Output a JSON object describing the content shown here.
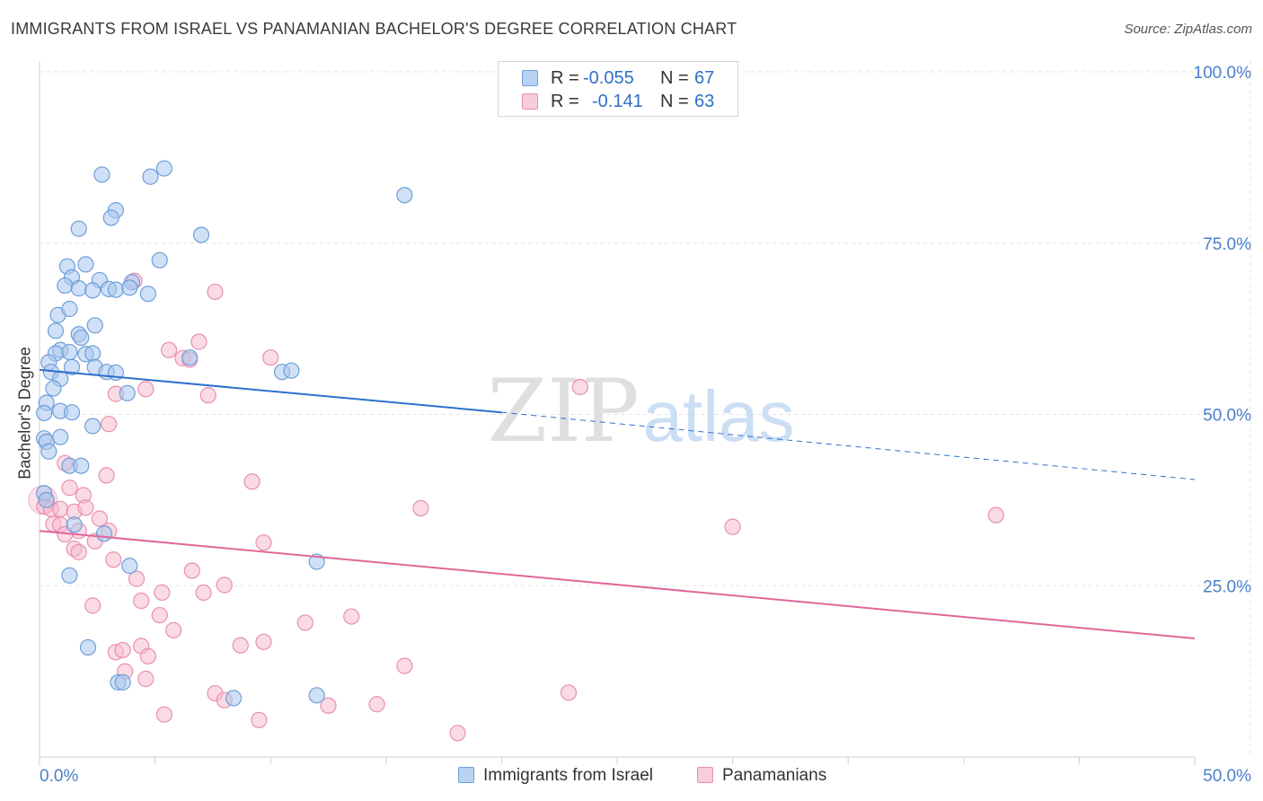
{
  "title": "IMMIGRANTS FROM ISRAEL VS PANAMANIAN BACHELOR'S DEGREE CORRELATION CHART",
  "source": "Source: ZipAtlas.com",
  "watermark": {
    "zip": "ZIP",
    "atlas": "atlas"
  },
  "legend_top": {
    "rows": [
      {
        "r_label": "R =",
        "r_value": "-0.055",
        "n_label": "N =",
        "n_value": "67"
      },
      {
        "r_label": "R =",
        "r_value": "-0.141",
        "n_label": "N =",
        "n_value": "63"
      }
    ]
  },
  "legend_bottom": {
    "series1": "Immigrants from Israel",
    "series2": "Panamanians"
  },
  "colors": {
    "blue_fill": "#a9c7ef",
    "blue_stroke": "#6f9fd8",
    "blue_line": "#2f6fce",
    "pink_fill": "#f6bdd0",
    "pink_stroke": "#e98fb0",
    "pink_line": "#e0679a",
    "axis_text": "#4a7fcb",
    "grid": "#e3e3e3"
  },
  "chart_data": {
    "type": "scatter",
    "title": "IMMIGRANTS FROM ISRAEL VS PANAMANIAN BACHELOR'S DEGREE CORRELATION CHART",
    "xlabel": "",
    "ylabel": "Bachelor's Degree",
    "xlim": [
      0,
      50
    ],
    "ylim": [
      0,
      100
    ],
    "x_tick_labels": [
      "0.0%",
      "50.0%"
    ],
    "y_tick_labels": [
      "100.0%",
      "75.0%",
      "50.0%",
      "25.0%"
    ],
    "y_ticks": [
      100,
      75,
      50,
      25
    ],
    "series": [
      {
        "name": "Immigrants from Israel",
        "R": -0.055,
        "N": 67,
        "trend": {
          "x0": 0,
          "y0": 56.5,
          "x1": 20,
          "y1": 50.3,
          "dash_x1": 50,
          "dash_y1": 40.5
        },
        "points": [
          [
            2.7,
            85.0
          ],
          [
            4.8,
            84.7
          ],
          [
            5.4,
            85.9
          ],
          [
            3.3,
            79.8
          ],
          [
            3.1,
            78.7
          ],
          [
            1.7,
            77.1
          ],
          [
            7.0,
            76.2
          ],
          [
            15.8,
            82.0
          ],
          [
            5.2,
            72.5
          ],
          [
            1.2,
            71.6
          ],
          [
            2.0,
            71.9
          ],
          [
            1.4,
            70.0
          ],
          [
            2.6,
            69.6
          ],
          [
            1.1,
            68.8
          ],
          [
            1.7,
            68.4
          ],
          [
            2.3,
            68.1
          ],
          [
            3.0,
            68.3
          ],
          [
            3.3,
            68.2
          ],
          [
            4.0,
            69.3
          ],
          [
            3.9,
            68.5
          ],
          [
            4.7,
            67.6
          ],
          [
            0.8,
            64.5
          ],
          [
            1.3,
            65.4
          ],
          [
            0.7,
            62.2
          ],
          [
            2.4,
            63.0
          ],
          [
            1.7,
            61.7
          ],
          [
            1.8,
            61.2
          ],
          [
            0.9,
            59.4
          ],
          [
            0.7,
            58.9
          ],
          [
            1.3,
            59.1
          ],
          [
            2.0,
            58.8
          ],
          [
            2.3,
            58.9
          ],
          [
            0.4,
            57.6
          ],
          [
            0.5,
            56.2
          ],
          [
            1.4,
            56.9
          ],
          [
            2.4,
            56.9
          ],
          [
            2.9,
            56.2
          ],
          [
            3.3,
            56.1
          ],
          [
            6.5,
            58.3
          ],
          [
            10.5,
            56.2
          ],
          [
            10.9,
            56.4
          ],
          [
            0.9,
            55.2
          ],
          [
            0.6,
            53.8
          ],
          [
            3.8,
            53.1
          ],
          [
            0.3,
            51.7
          ],
          [
            0.9,
            50.5
          ],
          [
            1.4,
            50.3
          ],
          [
            0.2,
            50.2
          ],
          [
            2.3,
            48.3
          ],
          [
            0.9,
            46.7
          ],
          [
            0.2,
            46.5
          ],
          [
            0.3,
            46.0
          ],
          [
            0.4,
            44.6
          ],
          [
            1.3,
            42.5
          ],
          [
            1.8,
            42.5
          ],
          [
            0.2,
            38.5
          ],
          [
            0.3,
            37.5
          ],
          [
            1.5,
            33.9
          ],
          [
            2.8,
            32.6
          ],
          [
            3.9,
            27.9
          ],
          [
            12.0,
            28.5
          ],
          [
            1.3,
            26.5
          ],
          [
            2.1,
            16.0
          ],
          [
            3.4,
            10.9
          ],
          [
            3.6,
            10.9
          ],
          [
            8.4,
            8.6
          ],
          [
            12.0,
            9.0
          ]
        ]
      },
      {
        "name": "Panamanians",
        "R": -0.141,
        "N": 63,
        "trend": {
          "x0": 0,
          "y0": 33.0,
          "x1": 50,
          "y1": 17.3
        },
        "points": [
          [
            4.1,
            69.5
          ],
          [
            7.6,
            67.9
          ],
          [
            6.9,
            60.6
          ],
          [
            5.6,
            59.4
          ],
          [
            6.2,
            58.2
          ],
          [
            6.5,
            58.0
          ],
          [
            10.0,
            58.3
          ],
          [
            3.3,
            53.0
          ],
          [
            4.6,
            53.7
          ],
          [
            7.3,
            52.8
          ],
          [
            23.4,
            54.0
          ],
          [
            3.0,
            48.6
          ],
          [
            1.1,
            42.9
          ],
          [
            2.9,
            41.1
          ],
          [
            9.2,
            40.2
          ],
          [
            1.3,
            39.3
          ],
          [
            1.9,
            38.2
          ],
          [
            0.3,
            37.5
          ],
          [
            0.2,
            36.6
          ],
          [
            0.5,
            36.2
          ],
          [
            0.9,
            36.2
          ],
          [
            1.5,
            35.8
          ],
          [
            2.0,
            36.4
          ],
          [
            16.5,
            36.3
          ],
          [
            41.4,
            35.3
          ],
          [
            2.6,
            34.8
          ],
          [
            0.6,
            34.0
          ],
          [
            0.9,
            33.9
          ],
          [
            1.7,
            33.0
          ],
          [
            3.0,
            33.0
          ],
          [
            1.1,
            32.5
          ],
          [
            30.0,
            33.6
          ],
          [
            2.4,
            31.5
          ],
          [
            9.7,
            31.3
          ],
          [
            1.5,
            30.4
          ],
          [
            1.7,
            29.9
          ],
          [
            3.2,
            28.8
          ],
          [
            6.6,
            27.2
          ],
          [
            4.2,
            26.0
          ],
          [
            8.0,
            25.1
          ],
          [
            5.3,
            24.0
          ],
          [
            7.1,
            24.0
          ],
          [
            4.4,
            22.8
          ],
          [
            2.3,
            22.1
          ],
          [
            5.2,
            20.7
          ],
          [
            11.5,
            19.6
          ],
          [
            13.5,
            20.5
          ],
          [
            5.8,
            18.5
          ],
          [
            9.7,
            16.8
          ],
          [
            8.7,
            16.3
          ],
          [
            4.4,
            16.2
          ],
          [
            3.3,
            15.3
          ],
          [
            3.6,
            15.6
          ],
          [
            4.7,
            14.7
          ],
          [
            15.8,
            13.3
          ],
          [
            3.7,
            12.5
          ],
          [
            4.6,
            11.4
          ],
          [
            7.6,
            9.3
          ],
          [
            8.0,
            8.3
          ],
          [
            22.9,
            9.4
          ],
          [
            12.5,
            7.5
          ],
          [
            14.6,
            7.7
          ],
          [
            5.4,
            6.2
          ],
          [
            9.5,
            5.4
          ],
          [
            18.1,
            3.5
          ]
        ]
      }
    ]
  }
}
